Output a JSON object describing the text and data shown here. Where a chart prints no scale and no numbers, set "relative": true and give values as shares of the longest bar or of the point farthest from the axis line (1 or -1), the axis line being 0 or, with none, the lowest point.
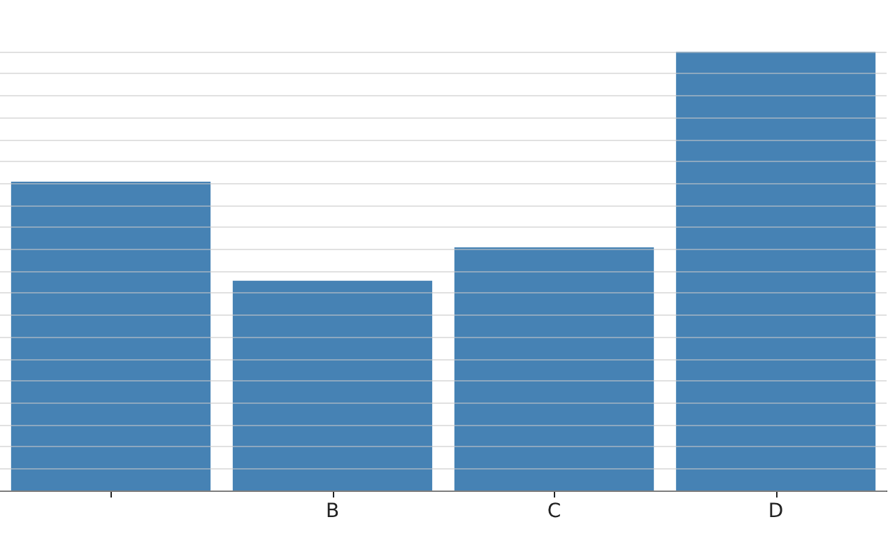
{
  "chart_data": {
    "type": "bar",
    "categories": [
      null,
      "B",
      "C",
      "D"
    ],
    "values": [
      0.704,
      0.478,
      0.554,
      1
    ],
    "color": "#4682b4",
    "relative": true,
    "grid": "y"
  }
}
